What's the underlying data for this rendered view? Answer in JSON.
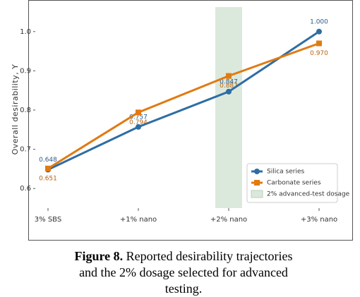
{
  "chart_data": {
    "type": "line",
    "y_label": "Overall desirability, Y",
    "categories": [
      "3% SBS",
      "+1% nano",
      "+2% nano",
      "+3% nano"
    ],
    "series": [
      {
        "name": "Silica series",
        "color": "#2e6da4",
        "marker": "circle",
        "values": [
          0.648,
          0.757,
          0.847,
          1.0
        ],
        "value_labels": [
          "0.648",
          "0.757",
          "0.847",
          "1.000"
        ]
      },
      {
        "name": "Carbonate series",
        "color": "#e07b12",
        "marker": "square",
        "values": [
          0.651,
          0.794,
          0.887,
          0.97
        ],
        "value_labels": [
          "0.651",
          "0.794",
          "0.887",
          "0.970"
        ]
      }
    ],
    "highlight": {
      "category": "+2% nano",
      "label": "2% advanced-test dosage",
      "color": "#dbe9dd"
    },
    "ylim": [
      0.55,
      1.05
    ],
    "yticks": [
      0.6,
      0.7,
      0.8,
      0.9,
      {
        "value": 1.0,
        "label": "1.0"
      }
    ],
    "grid": false,
    "legend": "lower right"
  },
  "caption": {
    "label": "Figure 8.",
    "text": "Reported desirability trajectories and the 2% dosage selected for advanced testing."
  }
}
